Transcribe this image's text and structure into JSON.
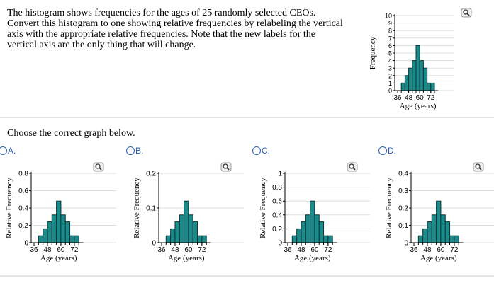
{
  "question": [
    "The histogram shows frequencies for the ages of 25 randomly selected CEOs.",
    "Convert this histogram to one showing relative frequencies by relabeling the vertical",
    "axis with the appropriate relative frequencies. Note that the new labels for the",
    "vertical axis are the only thing that will change."
  ],
  "prompt": "Choose the correct graph below.",
  "options": [
    "A.",
    "B.",
    "C.",
    "D."
  ],
  "chart_data": [
    {
      "type": "histogram",
      "xlabel": "Age (years)",
      "ylabel": "Frequency",
      "bins": [
        40,
        44,
        48,
        52,
        56,
        60,
        64,
        68,
        72,
        76
      ],
      "values": [
        1,
        2,
        3,
        4,
        6,
        4,
        3,
        1,
        1
      ],
      "color": "#1a8a8a",
      "xlim": [
        36,
        80
      ],
      "xticks": [
        36,
        48,
        60,
        72
      ],
      "ylim": [
        0,
        10
      ],
      "yticks": [
        0,
        1,
        2,
        3,
        4,
        5,
        6,
        7,
        8,
        9,
        10
      ],
      "grid": true
    },
    {
      "type": "histogram",
      "xlabel": "Age (years)",
      "ylabel": "Relative Frequency",
      "bins": [
        40,
        44,
        48,
        52,
        56,
        60,
        64,
        68,
        72,
        76
      ],
      "values": [
        0.08,
        0.16,
        0.24,
        0.32,
        0.48,
        0.32,
        0.24,
        0.08,
        0.08
      ],
      "color": "#1a8a8a",
      "xlim": [
        36,
        80
      ],
      "xticks": [
        36,
        48,
        60,
        72
      ],
      "ylim": [
        0,
        0.8
      ],
      "yticks": [
        0,
        0.2,
        0.4,
        0.6,
        0.8
      ],
      "grid": true
    },
    {
      "type": "histogram",
      "xlabel": "Age (years)",
      "ylabel": "Relative Frequency",
      "bins": [
        40,
        44,
        48,
        52,
        56,
        60,
        64,
        68,
        72,
        76
      ],
      "values": [
        0.02,
        0.04,
        0.06,
        0.08,
        0.12,
        0.08,
        0.06,
        0.02,
        0.02
      ],
      "color": "#1a8a8a",
      "xlim": [
        36,
        80
      ],
      "xticks": [
        36,
        48,
        60,
        72
      ],
      "ylim": [
        0,
        0.2
      ],
      "yticks": [
        0,
        0.1,
        0.2
      ],
      "grid": true
    },
    {
      "type": "histogram",
      "xlabel": "Age (years)",
      "ylabel": "Relative Frequency",
      "bins": [
        40,
        44,
        48,
        52,
        56,
        60,
        64,
        68,
        72,
        76
      ],
      "values": [
        0.1,
        0.2,
        0.3,
        0.4,
        0.6,
        0.4,
        0.3,
        0.1,
        0.1
      ],
      "color": "#1a8a8a",
      "xlim": [
        36,
        80
      ],
      "xticks": [
        36,
        48,
        60,
        72
      ],
      "ylim": [
        0,
        1
      ],
      "yticks": [
        0,
        0.2,
        0.4,
        0.6,
        0.8,
        1
      ],
      "grid": true
    },
    {
      "type": "histogram",
      "xlabel": "Age (years)",
      "ylabel": "Relative Frequency",
      "bins": [
        40,
        44,
        48,
        52,
        56,
        60,
        64,
        68,
        72,
        76
      ],
      "values": [
        0.04,
        0.08,
        0.12,
        0.16,
        0.24,
        0.16,
        0.12,
        0.04,
        0.04
      ],
      "color": "#1a8a8a",
      "xlim": [
        36,
        80
      ],
      "xticks": [
        36,
        48,
        60,
        72
      ],
      "ylim": [
        0,
        0.4
      ],
      "yticks": [
        0,
        0.1,
        0.2,
        0.3,
        0.4
      ],
      "grid": true
    }
  ]
}
